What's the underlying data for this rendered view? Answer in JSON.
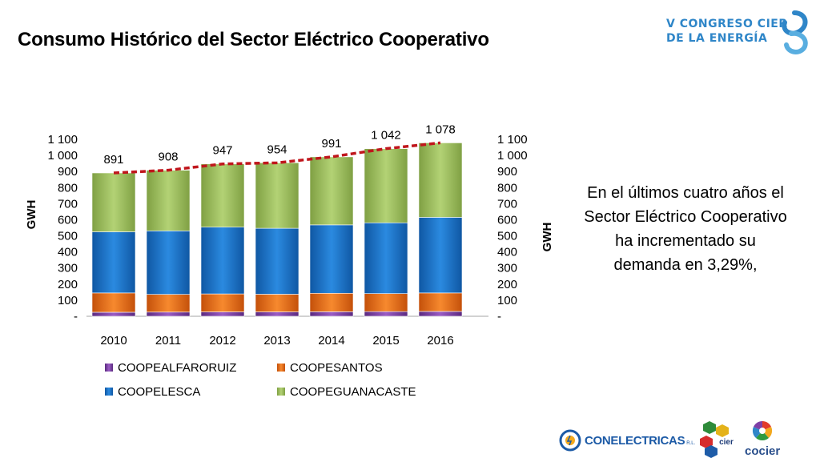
{
  "slide": {
    "title": "Consumo Histórico del Sector Eléctrico Cooperativo",
    "side_text": "En el últimos cuatro años el Sector Eléctrico Cooperativo ha incrementado su demanda en 3,29%,",
    "event_logo_line1": "V CONGRESO CIER",
    "event_logo_line2": "DE LA ENERGÍA",
    "logos": {
      "conelectricas": "CONELECTRICAS",
      "conelectricas_suffix": "R.L.",
      "cier": "cier",
      "cocier": "cocier"
    }
  },
  "colors": {
    "coopealfaroruiz": "#7e3fa6",
    "coopesantos": "#ec6c13",
    "coopelesca": "#1874cd",
    "coopeguanacaste": "#9bbb59",
    "trend": "#c0161c"
  },
  "chart_data": {
    "type": "bar",
    "stacked": true,
    "categories": [
      "2010",
      "2011",
      "2012",
      "2013",
      "2014",
      "2015",
      "2016"
    ],
    "series": [
      {
        "name": "COOPEALFARORUIZ",
        "values": [
          25,
          26,
          27,
          27,
          28,
          29,
          30
        ]
      },
      {
        "name": "COOPESANTOS",
        "values": [
          120,
          110,
          112,
          110,
          115,
          112,
          115
        ]
      },
      {
        "name": "COOPELESCA",
        "values": [
          380,
          395,
          415,
          410,
          425,
          440,
          470
        ]
      },
      {
        "name": "COOPEGUANACASTE",
        "values": [
          366,
          377,
          393,
          407,
          423,
          461,
          463
        ]
      }
    ],
    "totals": [
      891,
      908,
      947,
      954,
      991,
      1042,
      1078
    ],
    "total_labels": [
      "891",
      "908",
      "947",
      "954",
      "991",
      "1 042",
      "1 078"
    ],
    "ylabel_left": "GWH",
    "ylabel_right": "GWH",
    "ylim": [
      0,
      1100
    ],
    "yticks": [
      "-",
      "100",
      "200",
      "300",
      "400",
      "500",
      "600",
      "700",
      "800",
      "900",
      "1 000",
      "1 100"
    ],
    "legend_position": "bottom",
    "grid": false,
    "trend_line": "dashed"
  }
}
